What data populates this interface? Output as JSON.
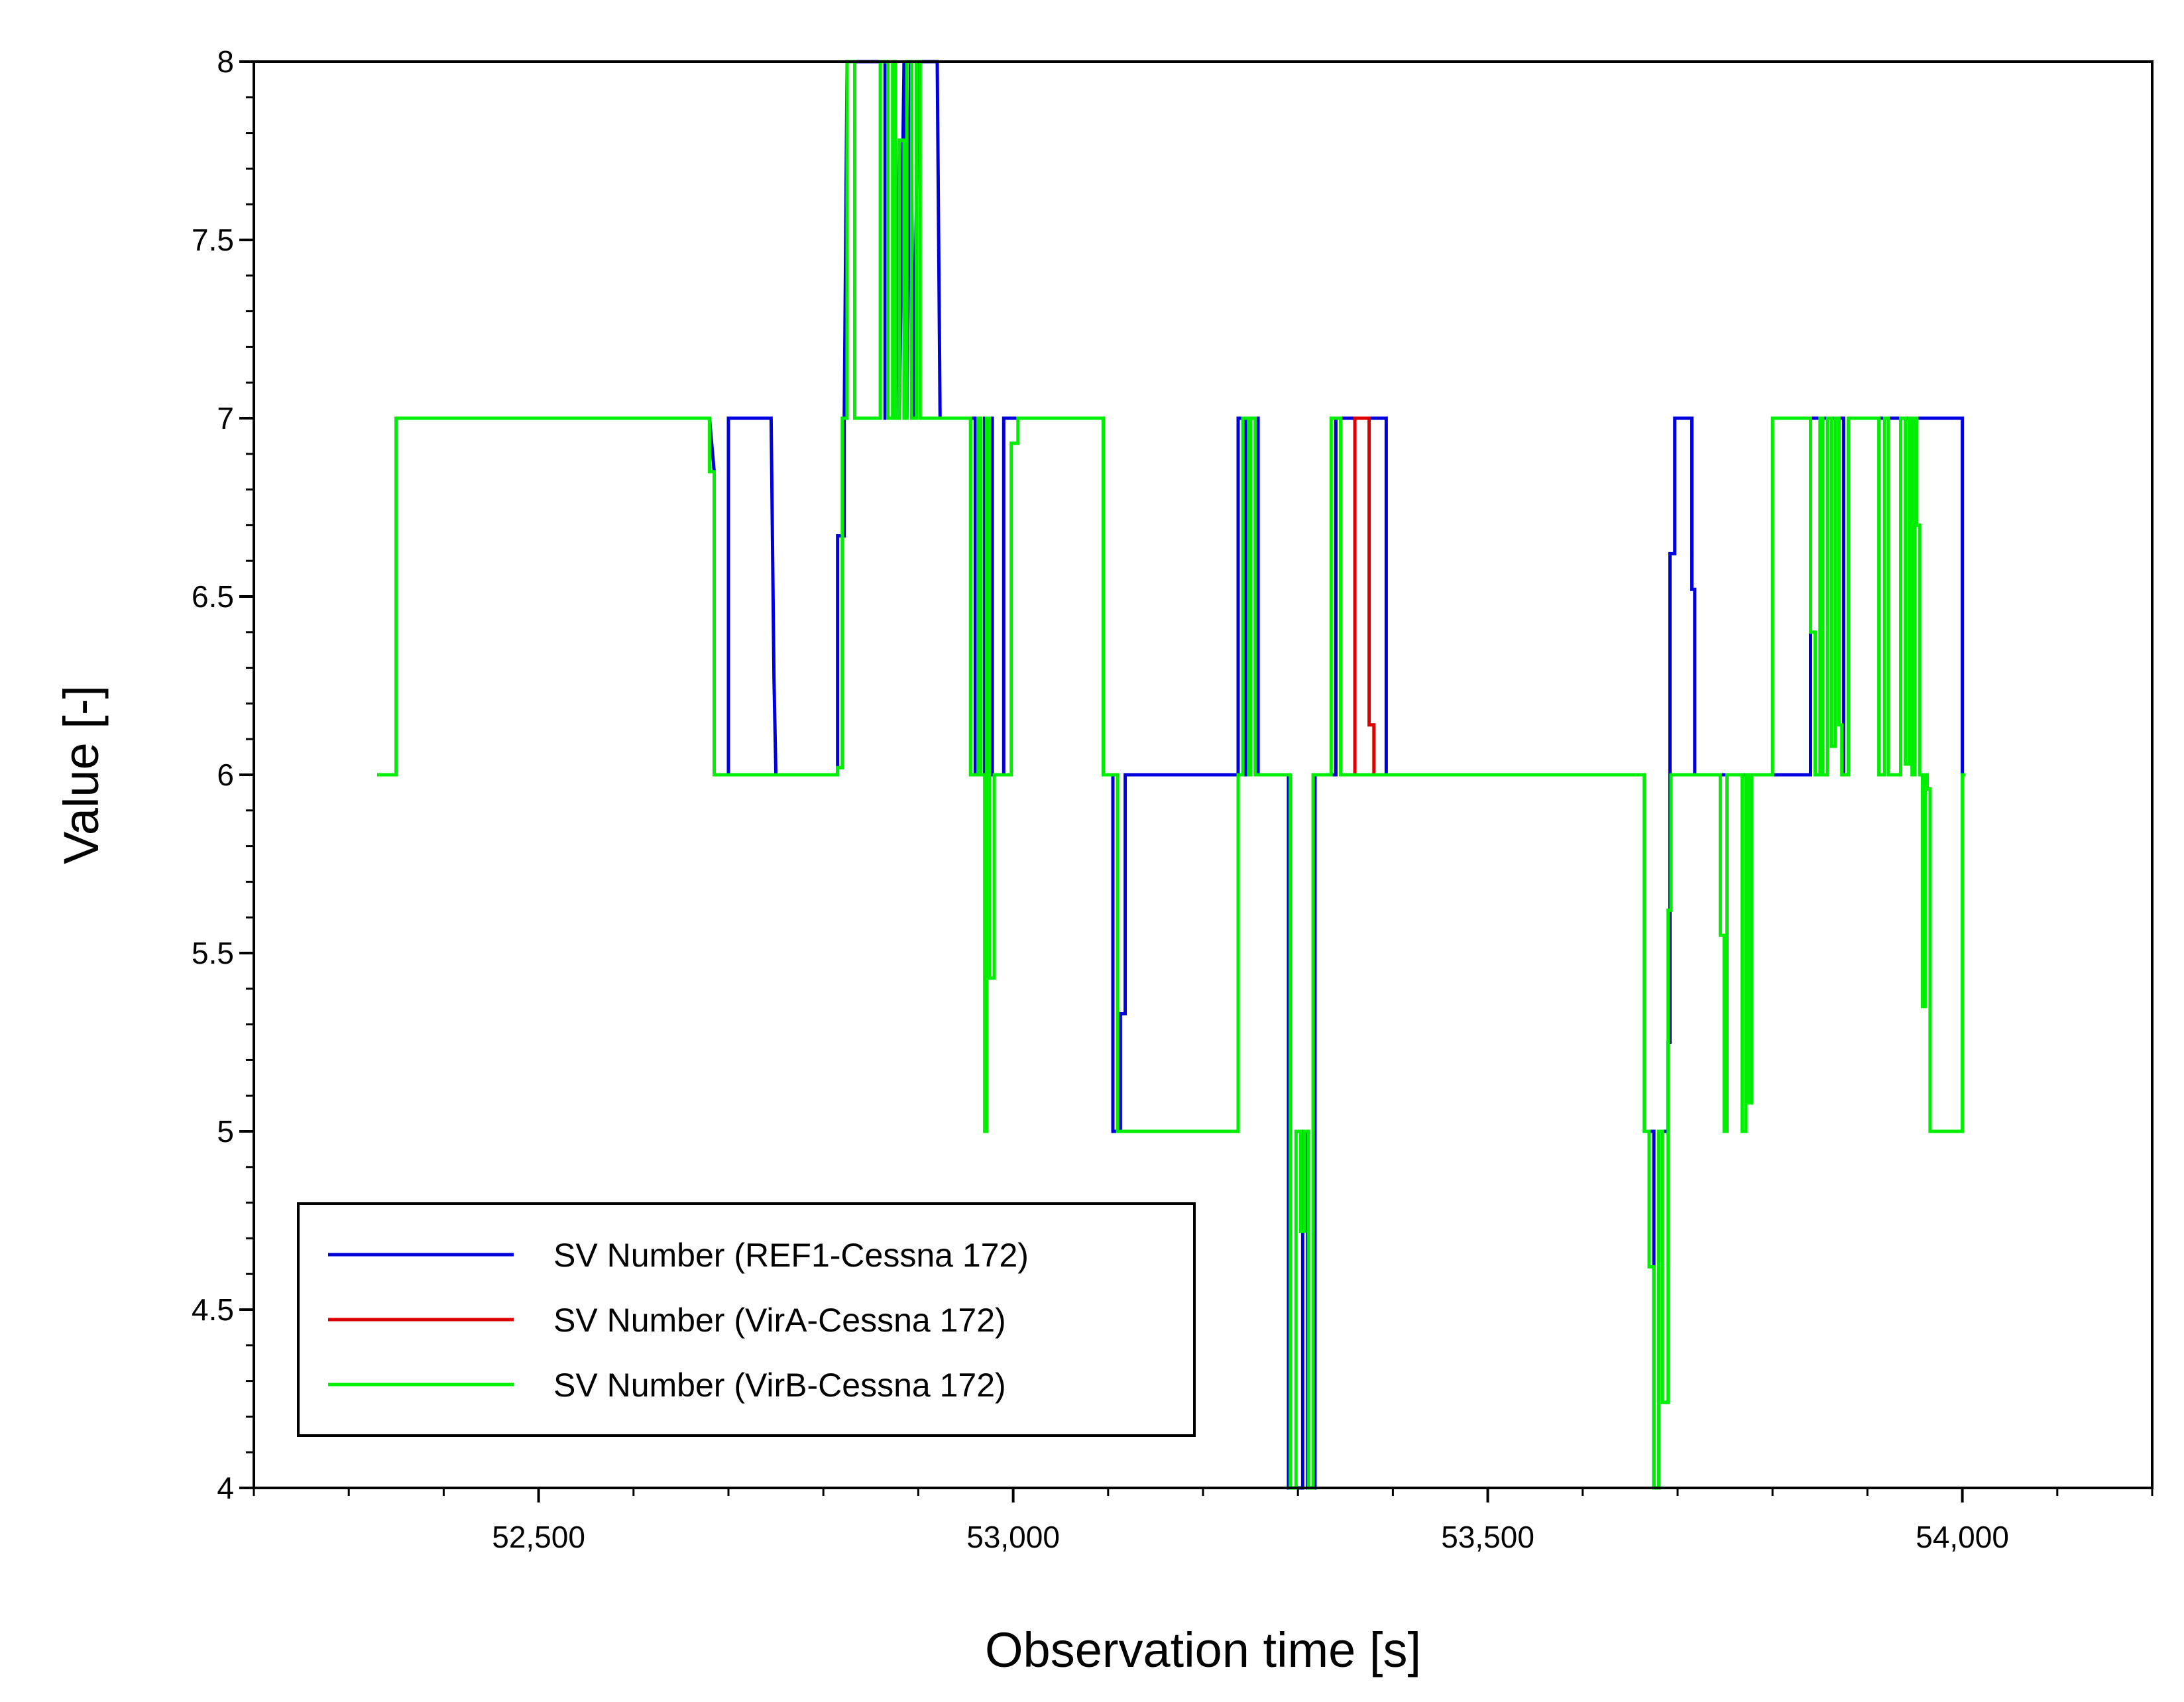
{
  "chart_data": {
    "type": "line",
    "title": "",
    "xlabel": "Observation time [s]",
    "ylabel": "Value [-]",
    "xlim": [
      52200,
      54200
    ],
    "ylim": [
      4,
      8
    ],
    "xticks": [
      {
        "value": 52500,
        "label": "52,500"
      },
      {
        "value": 53000,
        "label": "53,000"
      },
      {
        "value": 53500,
        "label": "53,500"
      },
      {
        "value": 54000,
        "label": "54,000"
      }
    ],
    "yticks": [
      {
        "value": 8,
        "label": "8"
      },
      {
        "value": 7.5,
        "label": "7.5"
      },
      {
        "value": 7,
        "label": "7"
      },
      {
        "value": 6.5,
        "label": "6.5"
      },
      {
        "value": 6,
        "label": "6"
      },
      {
        "value": 5.5,
        "label": "5.5"
      },
      {
        "value": 5,
        "label": "5"
      },
      {
        "value": 4.5,
        "label": "4.5"
      },
      {
        "value": 4,
        "label": "4"
      }
    ],
    "legend_position": "bottom-left",
    "series": [
      {
        "name": "SV Number (REF1-Cessna 172)",
        "color": "#0000dd",
        "points": [
          [
            52330,
            6
          ],
          [
            52350,
            6
          ],
          [
            52350,
            7
          ],
          [
            52680,
            7
          ],
          [
            52685,
            6.85
          ],
          [
            52685,
            6
          ],
          [
            52700,
            6
          ],
          [
            52700,
            7
          ],
          [
            52745,
            7
          ],
          [
            52748,
            6.27
          ],
          [
            52750,
            6
          ],
          [
            52815,
            6
          ],
          [
            52815,
            6.67
          ],
          [
            52822,
            6.67
          ],
          [
            52822,
            7
          ],
          [
            52825,
            8
          ],
          [
            52865,
            8
          ],
          [
            52865,
            7
          ],
          [
            52875,
            7
          ],
          [
            52875,
            8
          ],
          [
            52880,
            7
          ],
          [
            52885,
            8
          ],
          [
            52888,
            7
          ],
          [
            52892,
            8
          ],
          [
            52895,
            7
          ],
          [
            52900,
            8
          ],
          [
            52920,
            8
          ],
          [
            52923,
            7
          ],
          [
            52960,
            7
          ],
          [
            52960,
            6
          ],
          [
            52970,
            6
          ],
          [
            52970,
            7
          ],
          [
            52978,
            7
          ],
          [
            52978,
            6
          ],
          [
            52990,
            6
          ],
          [
            52990,
            7
          ],
          [
            52998,
            7
          ],
          [
            53000,
            7
          ],
          [
            53095,
            7
          ],
          [
            53095,
            6
          ],
          [
            53105,
            6
          ],
          [
            53105,
            5
          ],
          [
            53113,
            5
          ],
          [
            53113,
            5.33
          ],
          [
            53118,
            5.33
          ],
          [
            53118,
            6
          ],
          [
            53237,
            6
          ],
          [
            53237,
            7
          ],
          [
            53245,
            7
          ],
          [
            53245,
            6
          ],
          [
            53250,
            6
          ],
          [
            53250,
            7
          ],
          [
            53258,
            7
          ],
          [
            53258,
            6
          ],
          [
            53290,
            6
          ],
          [
            53290,
            4
          ],
          [
            53305,
            4
          ],
          [
            53305,
            5
          ],
          [
            53310,
            5
          ],
          [
            53310,
            4
          ],
          [
            53318,
            4
          ],
          [
            53318,
            6
          ],
          [
            53340,
            6
          ],
          [
            53340,
            7
          ],
          [
            53393,
            7
          ],
          [
            53393,
            6
          ],
          [
            53665,
            6
          ],
          [
            53665,
            5
          ],
          [
            53675,
            5
          ],
          [
            53675,
            4
          ],
          [
            53680,
            4
          ],
          [
            53680,
            5
          ],
          [
            53690,
            5
          ],
          [
            53690,
            5.25
          ],
          [
            53692,
            5.25
          ],
          [
            53692,
            6.62
          ],
          [
            53697,
            6.62
          ],
          [
            53697,
            7
          ],
          [
            53715,
            7
          ],
          [
            53715,
            6.52
          ],
          [
            53718,
            6.52
          ],
          [
            53718,
            6
          ],
          [
            53840,
            6
          ],
          [
            53840,
            7
          ],
          [
            53875,
            7
          ],
          [
            53875,
            6
          ],
          [
            53880,
            6
          ],
          [
            53880,
            7
          ],
          [
            54000,
            7
          ],
          [
            54000,
            6
          ]
        ]
      },
      {
        "name": "SV Number (VirA-Cessna 172)",
        "color": "#dd0000",
        "points": [
          [
            53360,
            6
          ],
          [
            53360,
            7
          ],
          [
            53375,
            7
          ],
          [
            53375,
            6.14
          ],
          [
            53380,
            6.14
          ],
          [
            53380,
            6
          ],
          [
            53390,
            6
          ]
        ]
      },
      {
        "name": "SV Number (VirB-Cessna 172)",
        "color": "#00ee00",
        "points": [
          [
            52330,
            6
          ],
          [
            52350,
            6
          ],
          [
            52350,
            7
          ],
          [
            52680,
            7
          ],
          [
            52680,
            6.85
          ],
          [
            52685,
            6.85
          ],
          [
            52685,
            6
          ],
          [
            52815,
            6
          ],
          [
            52815,
            6.02
          ],
          [
            52820,
            6.02
          ],
          [
            52820,
            7
          ],
          [
            52825,
            7
          ],
          [
            52825,
            8
          ],
          [
            52833,
            8
          ],
          [
            52833,
            7
          ],
          [
            52860,
            7
          ],
          [
            52860,
            8
          ],
          [
            52868,
            8
          ],
          [
            52868,
            7
          ],
          [
            52873,
            7
          ],
          [
            52873,
            8
          ],
          [
            52876,
            8
          ],
          [
            52876,
            7
          ],
          [
            52880,
            7
          ],
          [
            52880,
            7.78
          ],
          [
            52885,
            7.78
          ],
          [
            52885,
            7
          ],
          [
            52888,
            7
          ],
          [
            52888,
            8
          ],
          [
            52893,
            8
          ],
          [
            52893,
            7
          ],
          [
            52898,
            7
          ],
          [
            52898,
            8
          ],
          [
            52902,
            8
          ],
          [
            52902,
            7
          ],
          [
            52955,
            7
          ],
          [
            52955,
            6
          ],
          [
            52963,
            6
          ],
          [
            52963,
            7
          ],
          [
            52966,
            7
          ],
          [
            52966,
            6
          ],
          [
            52970,
            6
          ],
          [
            52970,
            5
          ],
          [
            52972,
            5
          ],
          [
            52972,
            7
          ],
          [
            52975,
            7
          ],
          [
            52975,
            5.43
          ],
          [
            52980,
            5.43
          ],
          [
            52980,
            6
          ],
          [
            52998,
            6
          ],
          [
            52998,
            6.93
          ],
          [
            53005,
            6.93
          ],
          [
            53005,
            7
          ],
          [
            53095,
            7
          ],
          [
            53095,
            6
          ],
          [
            53110,
            6
          ],
          [
            53110,
            5
          ],
          [
            53237,
            5
          ],
          [
            53237,
            6
          ],
          [
            53242,
            6
          ],
          [
            53242,
            7
          ],
          [
            53248,
            7
          ],
          [
            53248,
            6
          ],
          [
            53250,
            6
          ],
          [
            53250,
            7
          ],
          [
            53255,
            7
          ],
          [
            53255,
            6
          ],
          [
            53292,
            6
          ],
          [
            53292,
            4
          ],
          [
            53298,
            4
          ],
          [
            53298,
            5
          ],
          [
            53303,
            5
          ],
          [
            53303,
            4.72
          ],
          [
            53307,
            4.72
          ],
          [
            53307,
            5
          ],
          [
            53311,
            5
          ],
          [
            53311,
            4
          ],
          [
            53316,
            4
          ],
          [
            53316,
            6
          ],
          [
            53335,
            6
          ],
          [
            53335,
            7
          ],
          [
            53345,
            7
          ],
          [
            53345,
            6
          ],
          [
            53665,
            6
          ],
          [
            53665,
            5
          ],
          [
            53670,
            5
          ],
          [
            53670,
            4.62
          ],
          [
            53675,
            4.62
          ],
          [
            53675,
            4
          ],
          [
            53680,
            4
          ],
          [
            53680,
            5
          ],
          [
            53684,
            5
          ],
          [
            53684,
            4.24
          ],
          [
            53690,
            4.24
          ],
          [
            53690,
            5.62
          ],
          [
            53693,
            5.62
          ],
          [
            53693,
            6
          ],
          [
            53745,
            6
          ],
          [
            53745,
            5.55
          ],
          [
            53749,
            5.55
          ],
          [
            53749,
            5
          ],
          [
            53752,
            5
          ],
          [
            53752,
            6
          ],
          [
            53768,
            6
          ],
          [
            53768,
            5
          ],
          [
            53772,
            5
          ],
          [
            53772,
            6
          ],
          [
            53775,
            6
          ],
          [
            53775,
            5.08
          ],
          [
            53778,
            5.08
          ],
          [
            53778,
            6
          ],
          [
            53800,
            6
          ],
          [
            53800,
            7
          ],
          [
            53840,
            7
          ],
          [
            53840,
            6.4
          ],
          [
            53845,
            6.4
          ],
          [
            53845,
            6
          ],
          [
            53850,
            6
          ],
          [
            53850,
            7
          ],
          [
            53853,
            7
          ],
          [
            53853,
            6
          ],
          [
            53858,
            6
          ],
          [
            53858,
            7
          ],
          [
            53862,
            7
          ],
          [
            53862,
            6.08
          ],
          [
            53866,
            6.08
          ],
          [
            53866,
            7
          ],
          [
            53870,
            7
          ],
          [
            53870,
            6.14
          ],
          [
            53873,
            6.14
          ],
          [
            53873,
            6
          ],
          [
            53880,
            6
          ],
          [
            53880,
            7
          ],
          [
            53912,
            7
          ],
          [
            53912,
            6
          ],
          [
            53918,
            6
          ],
          [
            53918,
            7
          ],
          [
            53922,
            7
          ],
          [
            53922,
            6
          ],
          [
            53935,
            6
          ],
          [
            53935,
            7
          ],
          [
            53940,
            7
          ],
          [
            53940,
            6.03
          ],
          [
            53944,
            6.03
          ],
          [
            53944,
            7
          ],
          [
            53947,
            7
          ],
          [
            53947,
            6
          ],
          [
            53950,
            6
          ],
          [
            53950,
            7
          ],
          [
            53952,
            7
          ],
          [
            53952,
            6.7
          ],
          [
            53955,
            6.7
          ],
          [
            53955,
            6
          ],
          [
            53958,
            6
          ],
          [
            53958,
            5.35
          ],
          [
            53961,
            5.35
          ],
          [
            53961,
            6
          ],
          [
            53963,
            6
          ],
          [
            53963,
            5.96
          ],
          [
            53966,
            5.96
          ],
          [
            53966,
            5
          ],
          [
            54000,
            5
          ],
          [
            54000,
            6
          ],
          [
            54003,
            6
          ]
        ]
      }
    ]
  }
}
